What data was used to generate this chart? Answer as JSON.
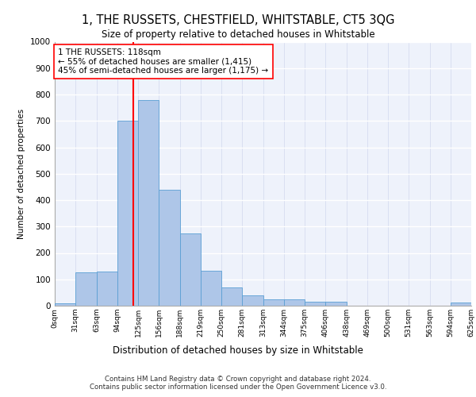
{
  "title": "1, THE RUSSETS, CHESTFIELD, WHITSTABLE, CT5 3QG",
  "subtitle": "Size of property relative to detached houses in Whitstable",
  "xlabel": "Distribution of detached houses by size in Whitstable",
  "ylabel": "Number of detached properties",
  "bar_edges": [
    0,
    31,
    63,
    94,
    125,
    156,
    188,
    219,
    250,
    281,
    313,
    344,
    375,
    406,
    438,
    469,
    500,
    531,
    563,
    594,
    625
  ],
  "bar_heights": [
    8,
    125,
    128,
    700,
    780,
    440,
    275,
    132,
    70,
    40,
    25,
    25,
    14,
    14,
    0,
    0,
    0,
    0,
    0,
    12
  ],
  "bar_color": "#aec6e8",
  "bar_edgecolor": "#5a9fd4",
  "property_size": 118,
  "vline_color": "red",
  "annotation_text": "1 THE RUSSETS: 118sqm\n← 55% of detached houses are smaller (1,415)\n45% of semi-detached houses are larger (1,175) →",
  "annotation_box_color": "white",
  "annotation_box_edgecolor": "red",
  "ylim": [
    0,
    1000
  ],
  "yticks": [
    0,
    100,
    200,
    300,
    400,
    500,
    600,
    700,
    800,
    900,
    1000
  ],
  "footer_line1": "Contains HM Land Registry data © Crown copyright and database right 2024.",
  "footer_line2": "Contains public sector information licensed under the Open Government Licence v3.0.",
  "bg_color": "#eef2fb",
  "tick_labels": [
    "0sqm",
    "31sqm",
    "63sqm",
    "94sqm",
    "125sqm",
    "156sqm",
    "188sqm",
    "219sqm",
    "250sqm",
    "281sqm",
    "313sqm",
    "344sqm",
    "375sqm",
    "406sqm",
    "438sqm",
    "469sqm",
    "500sqm",
    "531sqm",
    "563sqm",
    "594sqm",
    "625sqm"
  ]
}
